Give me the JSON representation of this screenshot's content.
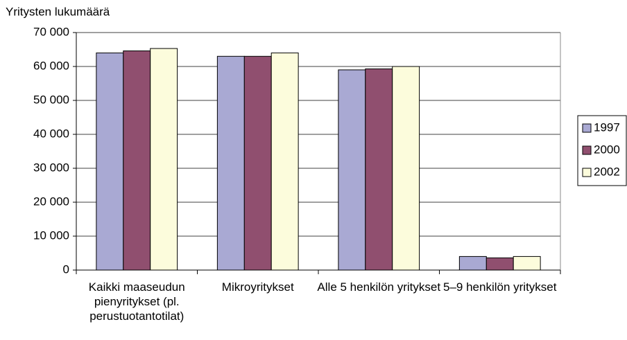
{
  "chart_data": {
    "type": "bar",
    "y_axis_label": "Yritysten lukumäärä",
    "categories": [
      "Kaikki maaseudun pienyritykset (pl. perustuotantotilat)",
      "Mikroyritykset",
      "Alle 5 henkilön yritykset",
      "5–9 henkilön yritykset"
    ],
    "series": [
      {
        "name": "1997",
        "color": "#a9a9d3",
        "values": [
          64000,
          63000,
          59000,
          4000
        ]
      },
      {
        "name": "2000",
        "color": "#904f6f",
        "values": [
          64600,
          63000,
          59300,
          3600
        ]
      },
      {
        "name": "2002",
        "color": "#fcfcdc",
        "values": [
          65300,
          64000,
          60000,
          4000
        ]
      }
    ],
    "ylim": [
      0,
      70000
    ],
    "yticks": [
      0,
      {
        "value": 10000,
        "label": "10 000"
      },
      {
        "value": 20000,
        "label": "20 000"
      },
      {
        "value": 30000,
        "label": "30 000"
      },
      {
        "value": 40000,
        "label": "40 000"
      },
      {
        "value": 50000,
        "label": "50 000"
      },
      {
        "value": 60000,
        "label": "60 000"
      },
      {
        "value": 70000,
        "label": "70 000"
      }
    ],
    "grid": true,
    "legend": "right"
  }
}
